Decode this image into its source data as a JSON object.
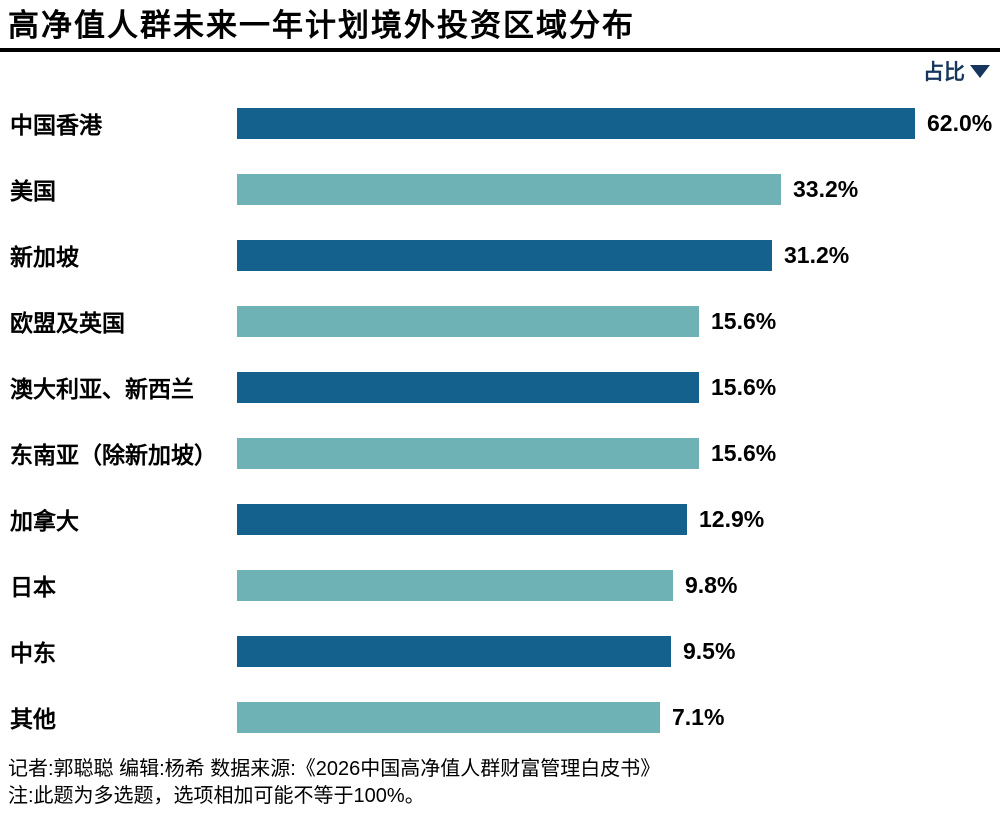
{
  "title": "高净值人群未来一年计划境外投资区域分布",
  "legend": {
    "label": "占比"
  },
  "chart_data": {
    "type": "bar",
    "orientation": "horizontal",
    "title": "高净值人群未来一年计划境外投资区域分布",
    "unit": "%",
    "sorted": "descending",
    "legend_position": "top-right",
    "grid": false,
    "axes_shown": false,
    "categories": [
      "中国香港",
      "美国",
      "新加坡",
      "欧盟及英国",
      "澳大利亚、新西兰",
      "东南亚（除新加坡）",
      "加拿大",
      "日本",
      "中东",
      "其他"
    ],
    "values": [
      62.0,
      33.2,
      31.2,
      15.6,
      15.6,
      15.6,
      12.9,
      9.8,
      9.5,
      7.1
    ],
    "value_labels": [
      "62.0%",
      "33.2%",
      "31.2%",
      "15.6%",
      "15.6%",
      "15.6%",
      "12.9%",
      "9.8%",
      "9.5%",
      "7.1%"
    ],
    "colors": {
      "dark_blue": "#15618E",
      "teal": "#6FB2B6",
      "pattern": "alternating starting with dark_blue"
    }
  },
  "footer": {
    "credits": "记者:郭聪聪  编辑:杨希  数据来源:《2026中国高净值人群财富管理白皮书》",
    "note": "注:此题为多选题，选项相加可能不等于100%。"
  }
}
